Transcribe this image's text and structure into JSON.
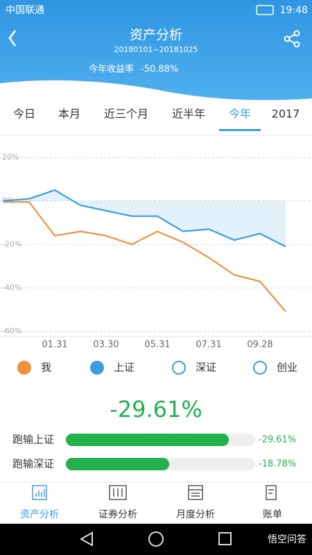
{
  "status_bar": {
    "carrier": "中国联通",
    "time": "19:48"
  },
  "header": {
    "title": "资产分析",
    "period": "20180101~20181025",
    "return_label": "今年收益率",
    "return_value": "-50.88%"
  },
  "tabs": [
    "今日",
    "本月",
    "近三个月",
    "近半年",
    "今年",
    "2017"
  ],
  "selected_tab": 4,
  "chart_data": {
    "type": "line",
    "categories": [
      null,
      null,
      "01.31",
      null,
      "03.30",
      null,
      "05.31",
      null,
      "07.31",
      null,
      "09.28",
      null
    ],
    "series": [
      {
        "name": "我",
        "color": "#f0913f",
        "values": [
          -0.5,
          -0.5,
          -16,
          -14,
          -16,
          -20,
          -14,
          -19,
          -26,
          -34,
          -37,
          -50.88
        ]
      },
      {
        "name": "上证",
        "color": "#3b9de1",
        "area": true,
        "values": [
          0,
          1,
          5,
          -2,
          -4.5,
          -7,
          -7,
          -14,
          -13,
          -18,
          -15,
          -21
        ]
      }
    ],
    "inactive_series": [
      {
        "name": "深证",
        "color": "#3b9de1"
      },
      {
        "name": "创业",
        "color": "#3b9de1"
      }
    ],
    "ylim": [
      -62,
      27
    ],
    "yticks": [
      {
        "value": 20,
        "label": "20%"
      },
      {
        "value": 0,
        "label": "0%"
      },
      {
        "value": -20,
        "label": "-20%"
      },
      {
        "value": -40,
        "label": "-40%"
      },
      {
        "value": -60,
        "label": "-60%"
      }
    ],
    "grid": true
  },
  "summary": "-29.61%",
  "comparison": {
    "color": "#22b14c",
    "xlim": [
      0,
      -34.4
    ],
    "rows": [
      {
        "label": "跑输上证",
        "value": -29.61,
        "value_label": "-29.61%"
      },
      {
        "label": "跑输深证",
        "value": -18.78,
        "value_label": "-18.78%"
      }
    ]
  },
  "nav": [
    "资产分析",
    "证券分析",
    "月度分析",
    "账单"
  ],
  "selected_nav": 0,
  "watermark": "悟空问答"
}
